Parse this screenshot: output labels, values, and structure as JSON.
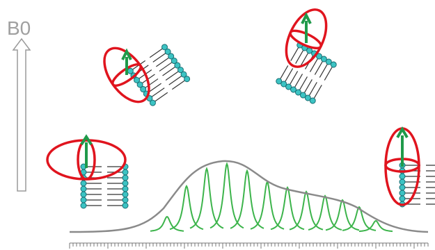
{
  "labels": {
    "field": "B0"
  }
}
